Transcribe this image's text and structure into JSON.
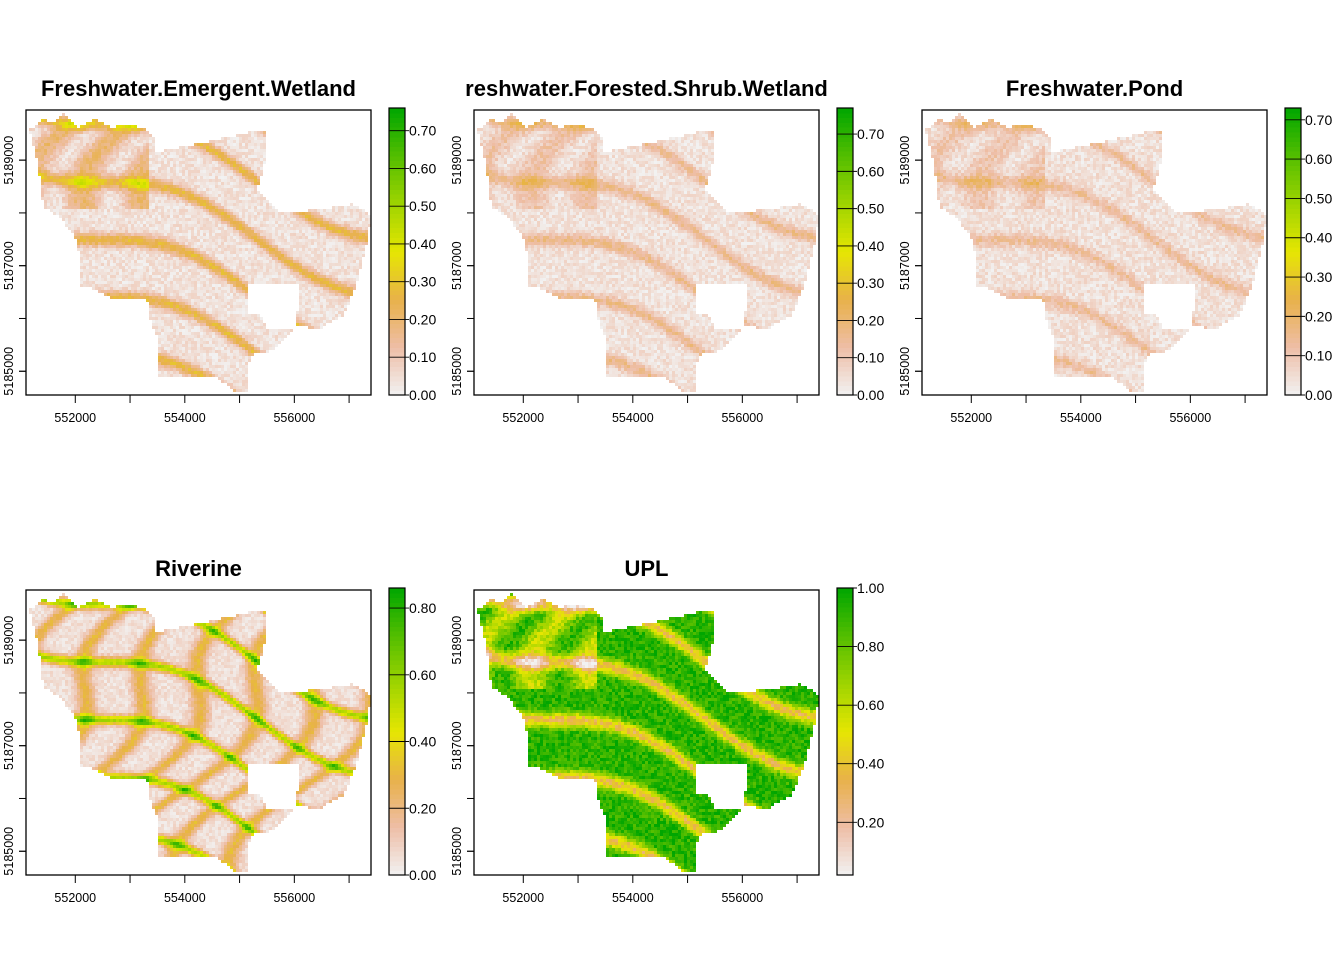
{
  "chart_data": [
    {
      "type": "heatmap",
      "title": "Freshwater.Emergent.Wetland",
      "x_ticks": [
        "552000",
        "554000",
        "556000"
      ],
      "y_ticks": [
        "5185000",
        "5187000",
        "5189000"
      ],
      "xlim": [
        551100,
        557400
      ],
      "ylim": [
        5184550,
        5189950
      ],
      "legend_ticks": [
        "0.00",
        "0.10",
        "0.20",
        "0.30",
        "0.40",
        "0.50",
        "0.60",
        "0.70"
      ],
      "legend_range": [
        0,
        0.76
      ],
      "intensity": 0.45
    },
    {
      "type": "heatmap",
      "title": "reshwater.Forested.Shrub.Wetland",
      "x_ticks": [
        "552000",
        "554000",
        "556000"
      ],
      "y_ticks": [
        "5185000",
        "5187000",
        "5189000"
      ],
      "xlim": [
        551100,
        557400
      ],
      "ylim": [
        5184550,
        5189950
      ],
      "legend_ticks": [
        "0.00",
        "0.10",
        "0.20",
        "0.30",
        "0.40",
        "0.50",
        "0.60",
        "0.70"
      ],
      "legend_range": [
        0,
        0.77
      ],
      "intensity": 0.25
    },
    {
      "type": "heatmap",
      "title": "Freshwater.Pond",
      "x_ticks": [
        "552000",
        "554000",
        "556000"
      ],
      "y_ticks": [
        "5185000",
        "5187000",
        "5189000"
      ],
      "xlim": [
        551100,
        557400
      ],
      "ylim": [
        5184550,
        5189950
      ],
      "legend_ticks": [
        "0.00",
        "0.10",
        "0.20",
        "0.30",
        "0.40",
        "0.50",
        "0.60",
        "0.70"
      ],
      "legend_range": [
        0,
        0.73
      ],
      "intensity": 0.2
    },
    {
      "type": "heatmap",
      "title": "Riverine",
      "x_ticks": [
        "552000",
        "554000",
        "556000"
      ],
      "y_ticks": [
        "5185000",
        "5187000",
        "5189000"
      ],
      "xlim": [
        551100,
        557400
      ],
      "ylim": [
        5184550,
        5189950
      ],
      "legend_ticks": [
        "0.00",
        "0.20",
        "0.40",
        "0.60",
        "0.80"
      ],
      "legend_range": [
        0,
        0.86
      ],
      "intensity": 0.2
    },
    {
      "type": "heatmap",
      "title": "UPL",
      "x_ticks": [
        "552000",
        "554000",
        "556000"
      ],
      "y_ticks": [
        "5185000",
        "5187000",
        "5189000"
      ],
      "xlim": [
        551100,
        557400
      ],
      "ylim": [
        5184550,
        5189950
      ],
      "legend_ticks": [
        "0.20",
        "0.40",
        "0.60",
        "0.80",
        "1.00"
      ],
      "legend_range": [
        0.02,
        1.0
      ],
      "intensity": 0.85
    }
  ],
  "colors": {
    "palette": [
      "#F2F2F2",
      "#EEBEA7",
      "#E8B14A",
      "#E6E602",
      "#9FD400",
      "#53BE00",
      "#00A600"
    ]
  }
}
